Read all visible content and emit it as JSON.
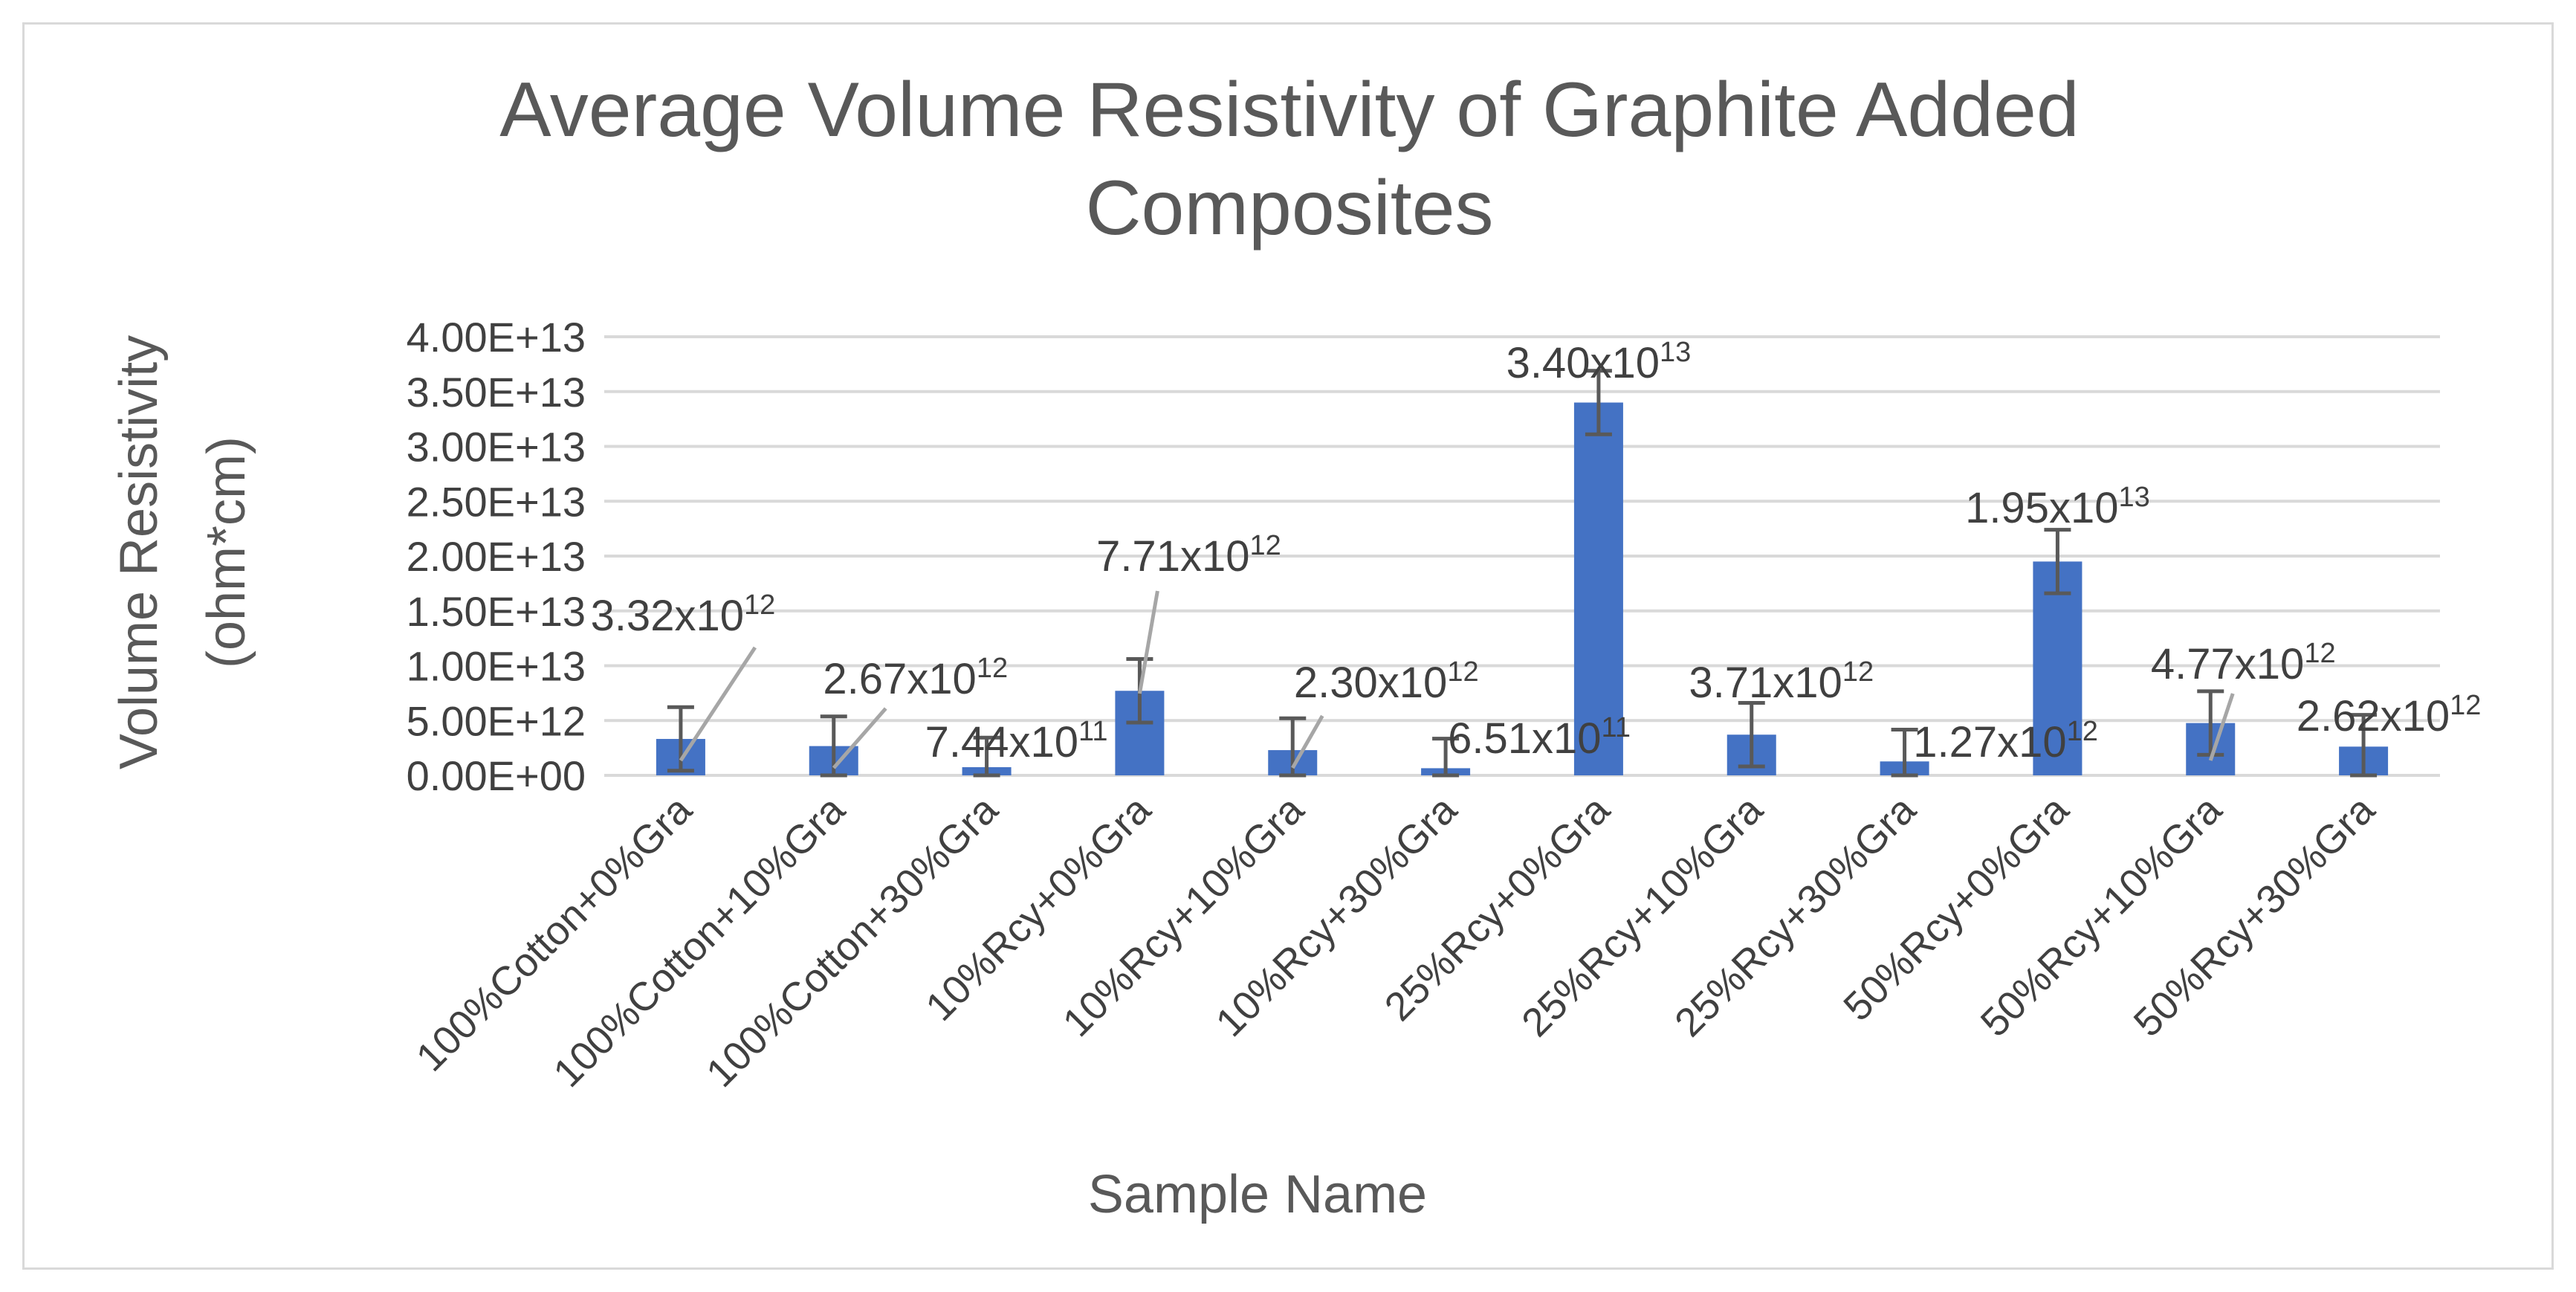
{
  "chart_data": {
    "type": "bar",
    "title_lines": [
      "Average Volume Resistivity of Graphite Added",
      "Composites"
    ],
    "xlabel": "Sample Name",
    "ylabel_lines": [
      "Volume Resistivity",
      "(ohm*cm)"
    ],
    "ylim": [
      0,
      40000000000000.0
    ],
    "y_ticks": [
      {
        "value": 0,
        "label": "0.00E+00"
      },
      {
        "value": 5000000000000.0,
        "label": "5.00E+12"
      },
      {
        "value": 10000000000000.0,
        "label": "1.00E+13"
      },
      {
        "value": 15000000000000.0,
        "label": "1.50E+13"
      },
      {
        "value": 20000000000000.0,
        "label": "2.00E+13"
      },
      {
        "value": 25000000000000.0,
        "label": "2.50E+13"
      },
      {
        "value": 30000000000000.0,
        "label": "3.00E+13"
      },
      {
        "value": 35000000000000.0,
        "label": "3.50E+13"
      },
      {
        "value": 40000000000000.0,
        "label": "4.00E+13"
      }
    ],
    "grid": true,
    "legend": "none",
    "bar_color": "#4472c4",
    "categories": [
      "100%Cotton+0%Gra",
      "100%Cotton+10%Gra",
      "100%Cotton+30%Gra",
      "10%Rcy+0%Gra",
      "10%Rcy+10%Gra",
      "10%Rcy+30%Gra",
      "25%Rcy+0%Gra",
      "25%Rcy+10%Gra",
      "25%Rcy+30%Gra",
      "50%Rcy+0%Gra",
      "50%Rcy+10%Gra",
      "50%Rcy+30%Gra"
    ],
    "values": [
      3320000000000.0,
      2670000000000.0,
      744000000000.0,
      7710000000000.0,
      2300000000000.0,
      651000000000.0,
      34000000000000.0,
      3710000000000.0,
      1270000000000.0,
      19500000000000.0,
      4770000000000.0,
      2620000000000.0
    ],
    "errors": [
      2900000000000.0,
      2700000000000.0,
      2700000000000.0,
      2900000000000.0,
      2900000000000.0,
      2700000000000.0,
      2900000000000.0,
      2900000000000.0,
      2900000000000.0,
      2900000000000.0,
      2900000000000.0,
      2900000000000.0
    ],
    "data_labels": [
      {
        "base": "3.32x10",
        "exp": "12"
      },
      {
        "base": "2.67x10",
        "exp": "12"
      },
      {
        "base": "7.44x10",
        "exp": "11"
      },
      {
        "base": "7.71x10",
        "exp": "12"
      },
      {
        "base": "2.30x10",
        "exp": "12"
      },
      {
        "base": "6.51x10",
        "exp": "11"
      },
      {
        "base": "3.40x10",
        "exp": "13"
      },
      {
        "base": "3.71x10",
        "exp": "12"
      },
      {
        "base": "1.27x10",
        "exp": "12"
      },
      {
        "base": "1.95x10",
        "exp": "13"
      },
      {
        "base": "4.77x10",
        "exp": "12"
      },
      {
        "base": "2.62x10",
        "exp": "12"
      }
    ]
  }
}
